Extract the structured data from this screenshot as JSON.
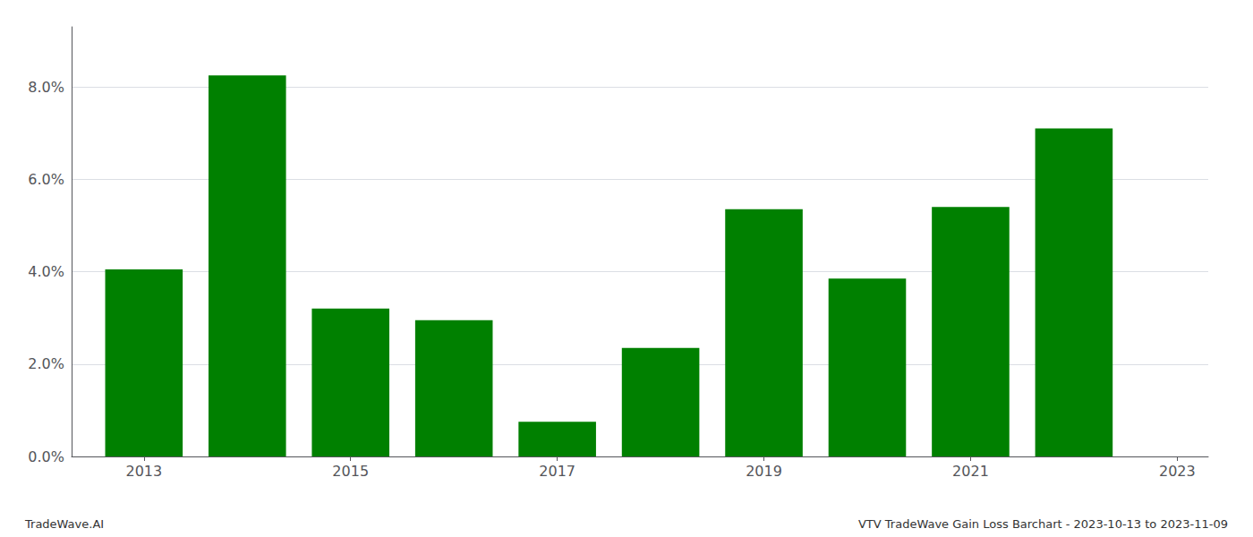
{
  "chart_data": {
    "type": "bar",
    "x": [
      2013,
      2014,
      2015,
      2016,
      2017,
      2018,
      2019,
      2020,
      2021,
      2022
    ],
    "values": [
      0.0405,
      0.0825,
      0.032,
      0.0295,
      0.0075,
      0.0235,
      0.0535,
      0.0385,
      0.054,
      0.071
    ],
    "color": "#008000",
    "xlim": [
      2012.3,
      2023.3
    ],
    "xticks": [
      2013,
      2015,
      2017,
      2019,
      2021,
      2023
    ],
    "ylim": [
      0,
      0.093
    ],
    "yticks": [
      {
        "value": 0.0,
        "label": "0.0%"
      },
      {
        "value": 0.02,
        "label": "2.0%"
      },
      {
        "value": 0.04,
        "label": "4.0%"
      },
      {
        "value": 0.06,
        "label": "6.0%"
      },
      {
        "value": 0.08,
        "label": "8.0%"
      }
    ],
    "grid": true,
    "annotations": [
      "TradeWave.AI",
      "VTV TradeWave Gain Loss Barchart - 2023-10-13 to 2023-11-09"
    ]
  }
}
